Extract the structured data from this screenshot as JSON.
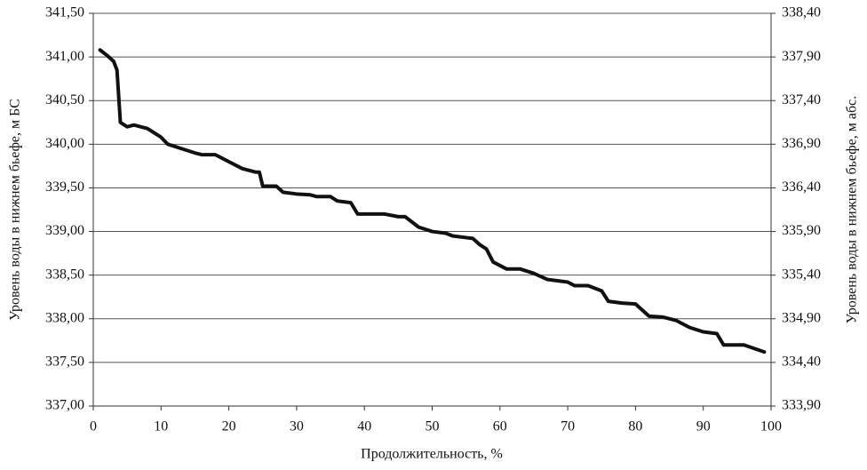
{
  "chart_data": {
    "type": "line",
    "x_label": "Продолжительность, %",
    "y_label": "Уровень воды в нижнем бьефе, м БС",
    "y2_label": "Уровень воды в нижнем бьефе, м абс.",
    "x": [
      1,
      2,
      3,
      3.5,
      4,
      5,
      6,
      8,
      10,
      11,
      13,
      15,
      16,
      18,
      20,
      22,
      24,
      24.5,
      25,
      27,
      28,
      30,
      32,
      33,
      35,
      36,
      38,
      39,
      41,
      43,
      45,
      46,
      48,
      50,
      52,
      53,
      55,
      56,
      57,
      58,
      59,
      61,
      63,
      65,
      67,
      69,
      70,
      71,
      73,
      75,
      76,
      78,
      80,
      82,
      84,
      86,
      88,
      90,
      92,
      93,
      96,
      99
    ],
    "series": [
      {
        "name": "Уровень воды",
        "color": "#111111",
        "values": [
          341.08,
          341.02,
          340.95,
          340.85,
          340.25,
          340.2,
          340.22,
          340.18,
          340.08,
          340.0,
          339.95,
          339.9,
          339.88,
          339.88,
          339.8,
          339.72,
          339.68,
          339.68,
          339.52,
          339.52,
          339.45,
          339.43,
          339.42,
          339.4,
          339.4,
          339.35,
          339.33,
          339.2,
          339.2,
          339.2,
          339.17,
          339.17,
          339.05,
          339.0,
          338.98,
          338.95,
          338.93,
          338.92,
          338.85,
          338.8,
          338.65,
          338.57,
          338.57,
          338.52,
          338.45,
          338.43,
          338.42,
          338.38,
          338.38,
          338.32,
          338.2,
          338.18,
          338.17,
          338.03,
          338.02,
          337.98,
          337.9,
          337.85,
          337.83,
          337.7,
          337.7,
          337.62
        ]
      }
    ],
    "xlim": [
      0,
      100
    ],
    "xticks": [
      0,
      10,
      20,
      30,
      40,
      50,
      60,
      70,
      80,
      90,
      100
    ],
    "ylim": [
      337.0,
      341.5
    ],
    "yticks": [
      {
        "value": 337.0,
        "label": "337,00"
      },
      {
        "value": 337.5,
        "label": "337,50"
      },
      {
        "value": 338.0,
        "label": "338,00"
      },
      {
        "value": 338.5,
        "label": "338,50"
      },
      {
        "value": 339.0,
        "label": "339,00"
      },
      {
        "value": 339.5,
        "label": "339,50"
      },
      {
        "value": 340.0,
        "label": "340,00"
      },
      {
        "value": 340.5,
        "label": "340,50"
      },
      {
        "value": 341.0,
        "label": "341,00"
      },
      {
        "value": 341.5,
        "label": "341,50"
      }
    ],
    "y2lim": [
      333.9,
      338.4
    ],
    "y2ticks": [
      {
        "value": 333.9,
        "label": "333,90"
      },
      {
        "value": 334.4,
        "label": "334,40"
      },
      {
        "value": 334.9,
        "label": "334,90"
      },
      {
        "value": 335.4,
        "label": "335,40"
      },
      {
        "value": 335.9,
        "label": "335,90"
      },
      {
        "value": 336.4,
        "label": "336,40"
      },
      {
        "value": 336.9,
        "label": "336,90"
      },
      {
        "value": 337.4,
        "label": "337,40"
      },
      {
        "value": 337.9,
        "label": "337,90"
      },
      {
        "value": 338.4,
        "label": "338,40"
      }
    ],
    "grid": true
  }
}
